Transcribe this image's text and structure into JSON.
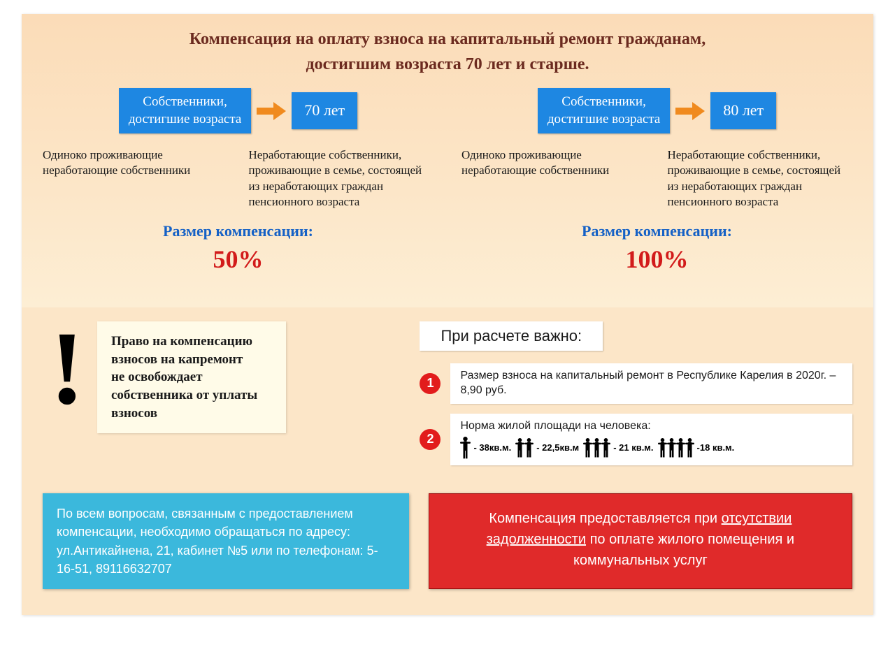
{
  "title": {
    "line1": "Компенсация на оплату взноса на капитальный ремонт гражданам,",
    "line2": "достигшим возраста 70 лет и старше."
  },
  "colors": {
    "pageBg": "#fce6c8",
    "titleText": "#6b2a1f",
    "blueBox": "#1e87e2",
    "arrowOrange": "#f08a1e",
    "compLabel": "#1561c6",
    "compValue": "#d21b1b",
    "noteBg": "#fffbe8",
    "calcNumBg": "#e21c1c",
    "infoBlueBg": "#3bb8dc",
    "infoRedBg": "#e02a2a"
  },
  "groups": [
    {
      "boxLabel": "Собственники,\nдостигшие возраста",
      "ageLabel": "70 лет",
      "conditions": [
        "Одиноко проживающие неработающие собственники",
        "Неработающие собственники, проживающие в семье, состоящей из неработающих граждан пенсионного возраста"
      ],
      "compLabel": "Размер компенсации:",
      "compValue": "50%"
    },
    {
      "boxLabel": "Собственники,\nдостигшие возраста",
      "ageLabel": "80 лет",
      "conditions": [
        "Одиноко проживающие неработающие собственники",
        "Неработающие собственники, проживающие в семье, состоящей из неработающих граждан пенсионного возраста"
      ],
      "compLabel": "Размер компенсации:",
      "compValue": "100%"
    }
  ],
  "exclaimNote": "Право на компенсацию взносов на капремонт не освобождает собственника от уплаты взносов",
  "calc": {
    "header": "При расчете важно:",
    "items": [
      {
        "num": "1",
        "text": "Размер взноса на капитальный ремонт в Республике Карелия в 2020г. – 8,90 руб."
      },
      {
        "num": "2",
        "text": "Норма жилой площади на человека:"
      }
    ],
    "norms": [
      {
        "people": 1,
        "label": "- 38кв.м."
      },
      {
        "people": 2,
        "label": "- 22,5кв.м"
      },
      {
        "people": 3,
        "label": "- 21 кв.м."
      },
      {
        "people": 4,
        "label": "-18 кв.м."
      }
    ]
  },
  "infoBlue": "По всем вопросам, связанным с предоставлением компенсации, необходимо обращаться по адресу: ул.Антикайнена, 21, кабинет №5 или по телефонам: 5-16-51, 89116632707",
  "infoRed": {
    "pre": "Компенсация предоставляется при ",
    "ul": "отсутствии задолженности",
    "post": " по оплате жилого помещения и коммунальных услуг"
  }
}
